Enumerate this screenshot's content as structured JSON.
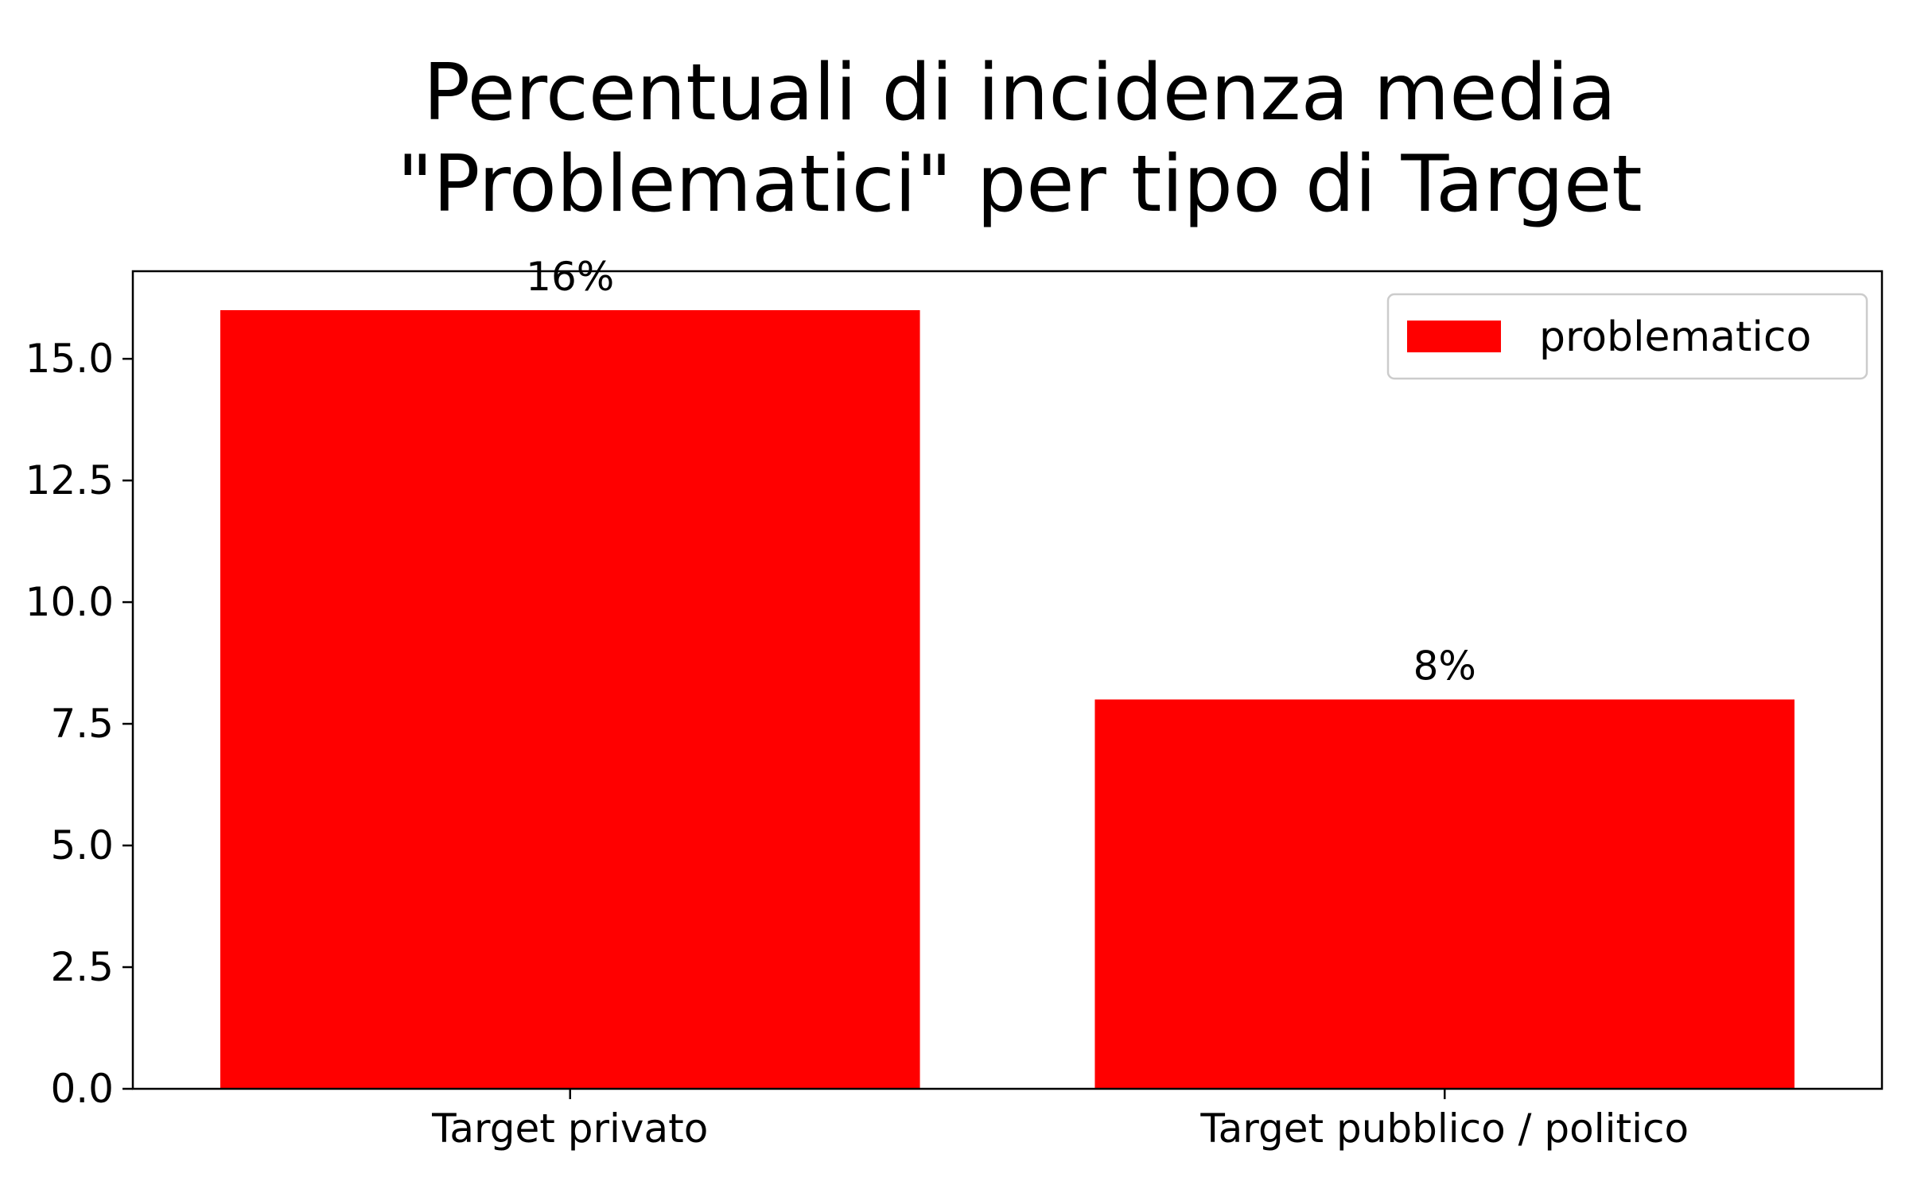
{
  "chart_data": {
    "type": "bar",
    "title": [
      "Percentuali di incidenza media",
      "\"Problematici\" per tipo di Target"
    ],
    "xlabel": "",
    "ylabel": "",
    "categories": [
      "Target privato",
      "Target pubblico / politico"
    ],
    "series": [
      {
        "name": "problematico",
        "values": [
          16,
          8
        ],
        "color": "#ff0000"
      }
    ],
    "data_labels": [
      "16%",
      "8%"
    ],
    "ylim": [
      0,
      16.8
    ],
    "yticks": [
      0.0,
      2.5,
      5.0,
      7.5,
      10.0,
      12.5,
      15.0
    ],
    "ytick_labels": [
      "0.0",
      "2.5",
      "5.0",
      "7.5",
      "10.0",
      "12.5",
      "15.0"
    ],
    "grid": false,
    "legend_position": "top-right"
  }
}
